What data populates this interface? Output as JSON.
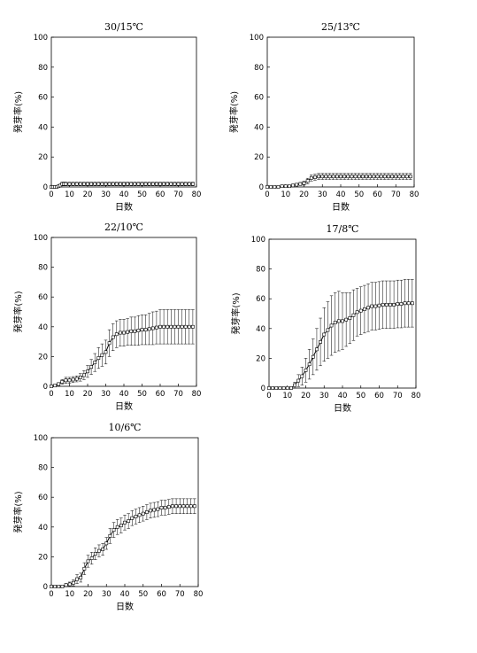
{
  "chart_data": [
    {
      "type": "line",
      "title": "30/15℃",
      "xlabel": "日数",
      "ylabel": "発芽率(%)",
      "xlim": [
        0,
        80
      ],
      "ylim": [
        0,
        100
      ],
      "xticks": [
        0,
        10,
        20,
        30,
        40,
        50,
        60,
        70,
        80
      ],
      "yticks": [
        0,
        20,
        40,
        60,
        80,
        100
      ],
      "series": [
        {
          "x": [
            0,
            1,
            2,
            3,
            4,
            5,
            6,
            7,
            8,
            10,
            12,
            14,
            16,
            18,
            20,
            22,
            24,
            26,
            28,
            30,
            32,
            34,
            36,
            38,
            40,
            42,
            44,
            46,
            48,
            50,
            52,
            54,
            56,
            58,
            60,
            62,
            64,
            66,
            68,
            70,
            72,
            74,
            76,
            78
          ],
          "y": [
            0,
            0,
            0,
            0,
            0.5,
            1,
            2,
            2,
            2,
            2,
            2,
            2,
            2,
            2,
            2,
            2,
            2,
            2,
            2,
            2,
            2,
            2,
            2,
            2,
            2,
            2,
            2,
            2,
            2,
            2,
            2,
            2,
            2,
            2,
            2,
            2,
            2,
            2,
            2,
            2,
            2,
            2,
            2,
            2
          ],
          "err": [
            0,
            0,
            0,
            0,
            0.3,
            0.6,
            1.2,
            1.2,
            1.2,
            1.2,
            1.2,
            1.2,
            1.2,
            1.2,
            1.2,
            1.2,
            1.2,
            1.2,
            1.2,
            1.2,
            1.2,
            1.2,
            1.2,
            1.2,
            1.2,
            1.2,
            1.2,
            1.2,
            1.2,
            1.2,
            1.2,
            1.2,
            1.2,
            1.2,
            1.2,
            1.2,
            1.2,
            1.2,
            1.2,
            1.2,
            1.2,
            1.2,
            1.2,
            1.2
          ]
        }
      ]
    },
    {
      "type": "line",
      "title": "25/13℃",
      "xlabel": "日数",
      "ylabel": "発芽率(%)",
      "xlim": [
        0,
        80
      ],
      "ylim": [
        0,
        100
      ],
      "xticks": [
        0,
        10,
        20,
        30,
        40,
        50,
        60,
        70,
        80
      ],
      "yticks": [
        0,
        20,
        40,
        60,
        80,
        100
      ],
      "series": [
        {
          "x": [
            0,
            2,
            4,
            6,
            8,
            10,
            12,
            14,
            16,
            18,
            20,
            22,
            24,
            26,
            28,
            30,
            32,
            34,
            36,
            38,
            40,
            42,
            44,
            46,
            48,
            50,
            52,
            54,
            56,
            58,
            60,
            62,
            64,
            66,
            68,
            70,
            72,
            74,
            76,
            78
          ],
          "y": [
            0,
            0,
            0,
            0,
            0.5,
            0.5,
            0.5,
            1,
            1.5,
            2,
            2.5,
            4,
            6,
            6.5,
            7,
            7,
            7,
            7,
            7,
            7,
            7,
            7,
            7,
            7,
            7,
            7,
            7,
            7,
            7,
            7,
            7,
            7,
            7,
            7,
            7,
            7,
            7,
            7,
            7,
            7
          ],
          "err": [
            0,
            0,
            0,
            0,
            0.3,
            0.3,
            0.3,
            0.6,
            0.8,
            1,
            1.3,
            1.8,
            2,
            2,
            2,
            2,
            2,
            2,
            2,
            2,
            2,
            2,
            2,
            2,
            2,
            2,
            2,
            2,
            2,
            2,
            2,
            2,
            2,
            2,
            2,
            2,
            2,
            2,
            2,
            2
          ]
        }
      ]
    },
    {
      "type": "line",
      "title": "22/10℃",
      "xlabel": "日数",
      "ylabel": "発芽率(%)",
      "xlim": [
        0,
        80
      ],
      "ylim": [
        0,
        100
      ],
      "xticks": [
        0,
        10,
        20,
        30,
        40,
        50,
        60,
        70,
        80
      ],
      "yticks": [
        0,
        20,
        40,
        60,
        80,
        100
      ],
      "series": [
        {
          "x": [
            0,
            2,
            4,
            6,
            8,
            10,
            12,
            14,
            16,
            18,
            20,
            22,
            24,
            26,
            28,
            30,
            32,
            34,
            36,
            38,
            40,
            42,
            44,
            46,
            48,
            50,
            52,
            54,
            56,
            58,
            60,
            62,
            64,
            66,
            68,
            70,
            72,
            74,
            76,
            78
          ],
          "y": [
            0,
            0.5,
            1.5,
            3,
            4,
            4,
            4.5,
            5,
            6,
            7.5,
            10,
            13,
            16,
            19,
            21,
            23,
            29,
            33,
            35,
            36,
            36,
            36.5,
            37,
            37,
            37.5,
            38,
            38,
            38.5,
            39,
            39.5,
            40,
            40,
            40,
            40,
            40,
            40,
            40,
            40,
            40,
            40
          ],
          "err": [
            0,
            0.5,
            1,
            1.5,
            2,
            2,
            2,
            2,
            2.5,
            3,
            4,
            5,
            6,
            7,
            7.5,
            8,
            9,
            9,
            9,
            9,
            9,
            9,
            9.5,
            9.5,
            10,
            10,
            10,
            10.5,
            11,
            11,
            11.5,
            11.5,
            11.5,
            11.5,
            11.5,
            11.5,
            11.5,
            11.5,
            11.5,
            11.5
          ]
        }
      ]
    },
    {
      "type": "line",
      "title": "17/8℃",
      "xlabel": "日数",
      "ylabel": "発芽率(%)",
      "xlim": [
        0,
        80
      ],
      "ylim": [
        0,
        100
      ],
      "xticks": [
        0,
        10,
        20,
        30,
        40,
        50,
        60,
        70,
        80
      ],
      "yticks": [
        0,
        20,
        40,
        60,
        80,
        100
      ],
      "series": [
        {
          "x": [
            0,
            2,
            4,
            6,
            8,
            10,
            12,
            14,
            16,
            18,
            20,
            22,
            24,
            26,
            28,
            30,
            32,
            34,
            36,
            38,
            40,
            42,
            44,
            46,
            48,
            50,
            52,
            54,
            56,
            58,
            60,
            62,
            64,
            66,
            68,
            70,
            72,
            74,
            76,
            78
          ],
          "y": [
            0,
            0,
            0,
            0,
            0,
            0,
            0,
            2,
            5,
            8,
            12,
            16,
            21,
            26,
            31,
            36,
            39,
            42,
            44,
            45,
            45,
            46,
            47,
            49,
            51,
            52,
            53,
            54,
            55,
            55,
            55.5,
            56,
            56,
            56,
            56,
            56.5,
            56.5,
            57,
            57,
            57
          ],
          "err": [
            0,
            0,
            0,
            0,
            0,
            0,
            0,
            2,
            4,
            6,
            8,
            10,
            12,
            14,
            16,
            18,
            19,
            20,
            20,
            20,
            19,
            18,
            17,
            17,
            16,
            16,
            16,
            16,
            16,
            16,
            16,
            16,
            16,
            16,
            16,
            16,
            16,
            16,
            16,
            16
          ]
        }
      ]
    },
    {
      "type": "line",
      "title": "10/6℃",
      "xlabel": "日数",
      "ylabel": "発芽率(%)",
      "xlim": [
        0,
        80
      ],
      "ylim": [
        0,
        100
      ],
      "xticks": [
        0,
        10,
        20,
        30,
        40,
        50,
        60,
        70,
        80
      ],
      "yticks": [
        0,
        20,
        40,
        60,
        80,
        100
      ],
      "series": [
        {
          "x": [
            0,
            2,
            4,
            6,
            8,
            10,
            12,
            14,
            16,
            18,
            20,
            22,
            24,
            26,
            28,
            30,
            32,
            34,
            36,
            38,
            40,
            42,
            44,
            46,
            48,
            50,
            52,
            54,
            56,
            58,
            60,
            62,
            64,
            66,
            68,
            70,
            72,
            74,
            76,
            78
          ],
          "y": [
            0,
            0,
            0,
            0,
            1,
            1.5,
            2.5,
            5,
            6,
            12,
            17,
            19,
            22,
            24,
            25,
            29,
            34,
            38,
            40,
            41,
            43,
            44,
            46,
            47,
            48,
            49,
            50,
            51,
            51.5,
            52,
            53,
            53,
            53.5,
            54,
            54,
            54,
            54,
            54,
            54,
            54
          ],
          "err": [
            0,
            0,
            0,
            0,
            1,
            1.5,
            2,
            3,
            3,
            4,
            4,
            4,
            4,
            4,
            4,
            4,
            5,
            5,
            5,
            5,
            5,
            5,
            5,
            5,
            5,
            5,
            5,
            5,
            5,
            5,
            5,
            5,
            5,
            5,
            5,
            5,
            5,
            5,
            5,
            5
          ]
        }
      ]
    }
  ]
}
